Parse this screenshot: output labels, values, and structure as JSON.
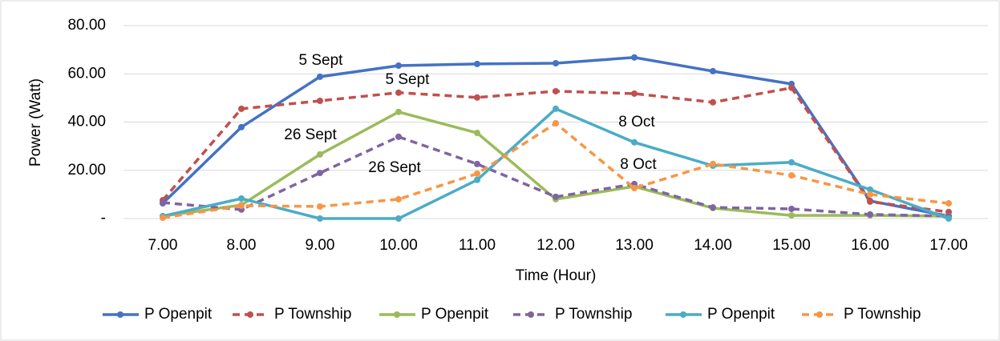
{
  "chart_data": {
    "type": "line",
    "ylabel": "Power (Watt)",
    "xlabel": "Time (Hour)",
    "categories": [
      "7.00",
      "8.00",
      "9.00",
      "10.00",
      "11.00",
      "12.00",
      "13.00",
      "14.00",
      "15.00",
      "16.00",
      "17.00"
    ],
    "ylim": [
      0,
      80
    ],
    "yticks": [
      {
        "value": 0,
        "label": "-"
      },
      {
        "value": 20,
        "label": "20.00"
      },
      {
        "value": 40,
        "label": "40.00"
      },
      {
        "value": 60,
        "label": "60.00"
      },
      {
        "value": 80,
        "label": "80.00"
      }
    ],
    "grid": true,
    "legend": "bottom",
    "series": [
      {
        "name": "P Openpit",
        "color": "#4472c4",
        "linestyle": "solid",
        "values": [
          6.3,
          37.9,
          58.8,
          63.4,
          64.1,
          64.4,
          66.8,
          61.1,
          55.8,
          7.3,
          1
        ]
      },
      {
        "name": "P Township",
        "color": "#c0504d",
        "linestyle": "dashed",
        "values": [
          7.6,
          45.5,
          48.8,
          52.2,
          50.2,
          52.8,
          51.8,
          48.2,
          54.2,
          7,
          2.7
        ]
      },
      {
        "name": "P Openpit",
        "color": "#9bbb59",
        "linestyle": "solid",
        "values": [
          1,
          5.6,
          26.6,
          44.2,
          35.5,
          8,
          13.3,
          4.3,
          1.3,
          1.3,
          1
        ]
      },
      {
        "name": "P Township",
        "color": "#8064a2",
        "linestyle": "dashed",
        "values": [
          6.6,
          3.7,
          18.9,
          33.9,
          22.6,
          9,
          14.3,
          4.6,
          4,
          1.7,
          1
        ]
      },
      {
        "name": "P Openpit",
        "color": "#4bacc6",
        "linestyle": "solid",
        "values": [
          1,
          8.3,
          0,
          0,
          16,
          45.5,
          31.6,
          21.9,
          23.3,
          12,
          0
        ]
      },
      {
        "name": "P Township",
        "color": "#f79646",
        "linestyle": "dashed",
        "values": [
          0.3,
          5.3,
          5,
          8,
          18.6,
          39.5,
          12.6,
          22.6,
          17.9,
          10,
          6.3
        ]
      }
    ],
    "annotations": [
      "5 Sept",
      "5 Sept",
      "26 Sept",
      "26 Sept",
      "8 Oct",
      "8 Oct"
    ]
  }
}
